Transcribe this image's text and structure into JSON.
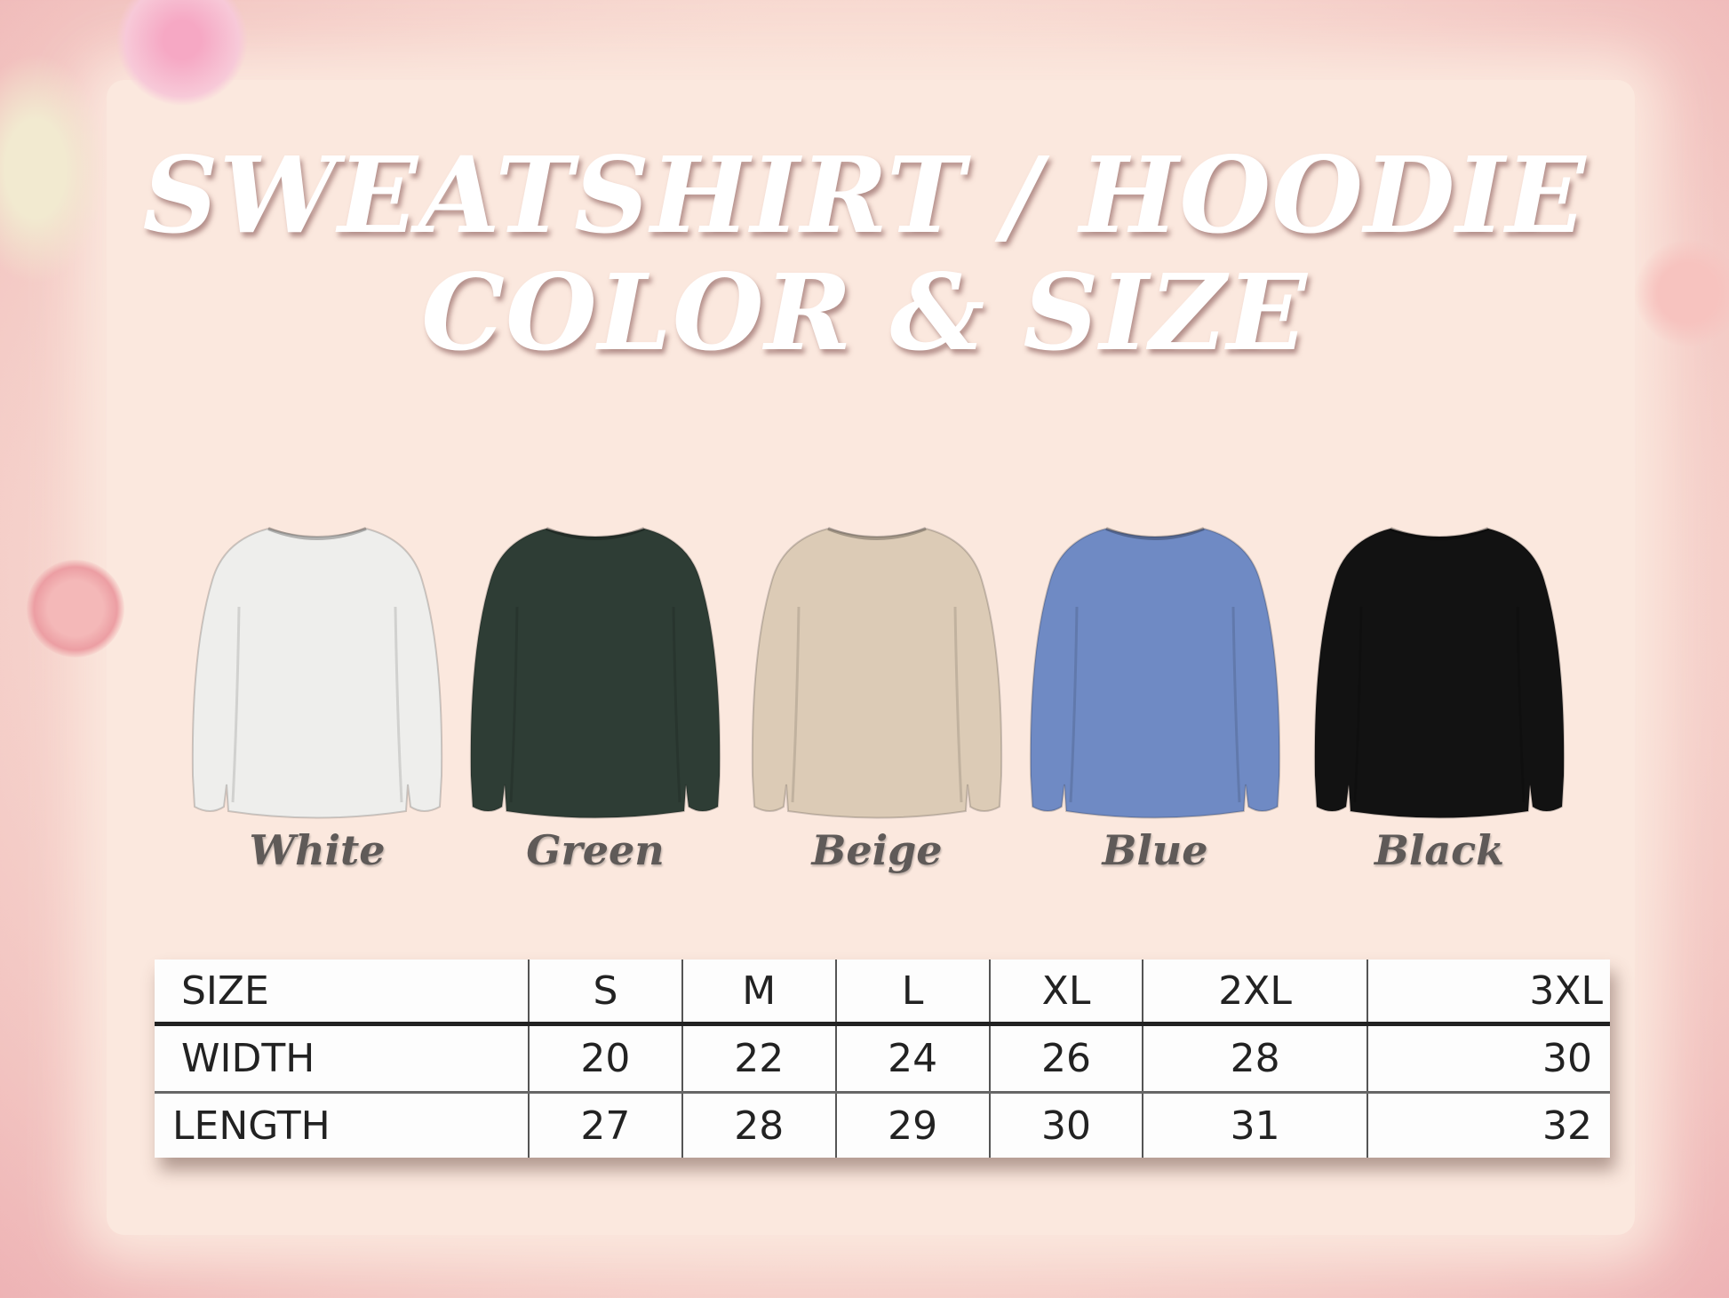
{
  "title": {
    "line1": "SWEATSHIRT / HOODIE",
    "line2": "COLOR & SIZE"
  },
  "colors": [
    {
      "label": "White",
      "hex": "#eeeeec"
    },
    {
      "label": "Green",
      "hex": "#2e3d35"
    },
    {
      "label": "Beige",
      "hex": "#dccbb6"
    },
    {
      "label": "Blue",
      "hex": "#6f8ac4"
    },
    {
      "label": "Black",
      "hex": "#121212"
    }
  ],
  "size_table": {
    "header": [
      "SIZE",
      "S",
      "M",
      "L",
      "XL",
      "2XL",
      "3XL"
    ],
    "rows": [
      [
        "WIDTH",
        "20",
        "22",
        "24",
        "26",
        "28",
        "30"
      ],
      [
        "LENGTH",
        "27",
        "28",
        "29",
        "30",
        "31",
        "32"
      ]
    ]
  }
}
